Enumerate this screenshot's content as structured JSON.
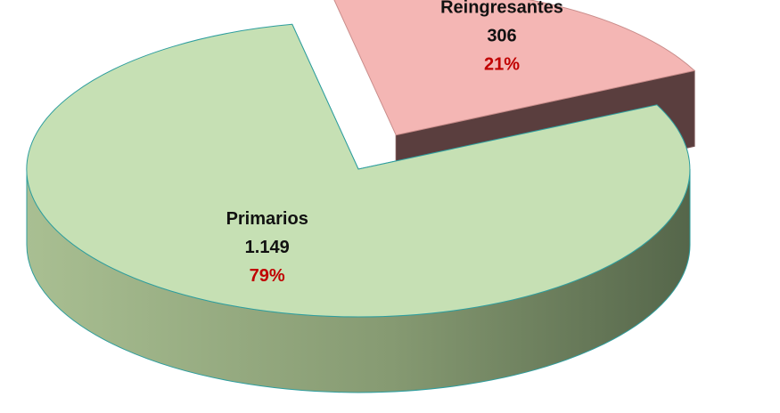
{
  "chart_data": {
    "type": "pie",
    "title": "",
    "slices": [
      {
        "name": "Primarios",
        "value": 1149,
        "value_label": "1.149",
        "percent_label": "79%",
        "color": "#c6e0b4",
        "exploded": false
      },
      {
        "name": "Reingresantes",
        "value": 306,
        "value_label": "306",
        "percent_label": "21%",
        "color": "#f4b6b4",
        "exploded": true
      }
    ],
    "percent_label_color": "#c00000",
    "edge_color": "#2e9e9e",
    "style": "3d-exploded"
  }
}
